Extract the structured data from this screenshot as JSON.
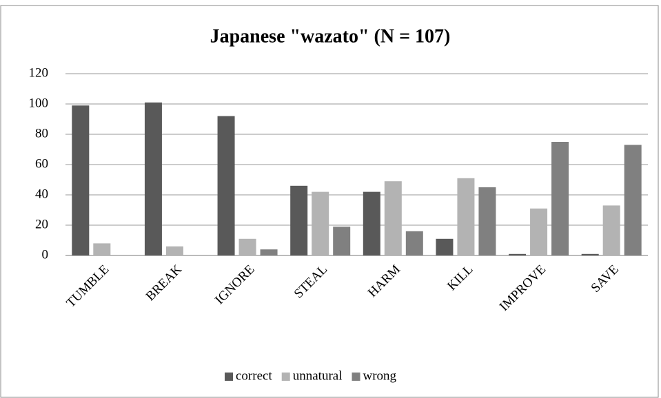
{
  "chart_data": {
    "type": "bar",
    "title": "Japanese \"wazato\" (N = 107)",
    "categories": [
      "TUMBLE",
      "BREAK",
      "IGNORE",
      "STEAL",
      "HARM",
      "KILL",
      "IMPROVE",
      "SAVE"
    ],
    "series": [
      {
        "name": "correct",
        "color": "#595959",
        "values": [
          99,
          101,
          92,
          46,
          42,
          11,
          1,
          1
        ]
      },
      {
        "name": "unnatural",
        "color": "#b3b3b3",
        "values": [
          8,
          6,
          11,
          42,
          49,
          51,
          31,
          33
        ]
      },
      {
        "name": "wrong",
        "color": "#808080",
        "values": [
          0,
          0,
          4,
          19,
          16,
          45,
          75,
          73
        ]
      }
    ],
    "ylim": [
      0,
      120
    ],
    "yticks": [
      0,
      20,
      40,
      60,
      80,
      100,
      120
    ],
    "grid": true,
    "legend": "bottom"
  }
}
